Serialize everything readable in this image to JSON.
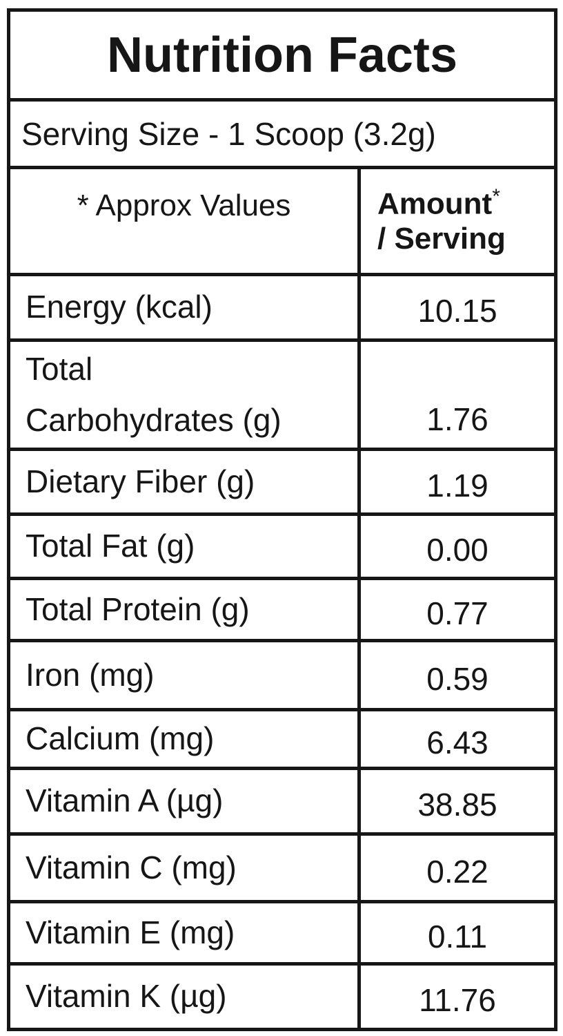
{
  "header": {
    "title": "Nutrition Facts",
    "serving": "Serving Size - 1 Scoop (3.2g)"
  },
  "table": {
    "columns": {
      "left": "* Approx Values",
      "amount": "Amount",
      "amount_mark": "*",
      "per": "/ Serving"
    },
    "rows": [
      {
        "name": "Energy (kcal)",
        "amount": "10.15"
      },
      {
        "name": "Total\nCarbohydrates (g)",
        "amount": "1.76"
      },
      {
        "name": "Dietary Fiber (g)",
        "amount": "1.19"
      },
      {
        "name": "Total Fat (g)",
        "amount": "0.00"
      },
      {
        "name": "Total Protein (g)",
        "amount": "0.77"
      },
      {
        "name": "Iron (mg)",
        "amount": "0.59"
      },
      {
        "name": "Calcium (mg)",
        "amount": "6.43"
      },
      {
        "name": "Vitamin A (µg)",
        "amount": "38.85"
      },
      {
        "name": "Vitamin C (mg)",
        "amount": "0.22"
      },
      {
        "name": "Vitamin E (mg)",
        "amount": "0.11"
      },
      {
        "name": "Vitamin K (µg)",
        "amount": "11.76"
      }
    ]
  }
}
